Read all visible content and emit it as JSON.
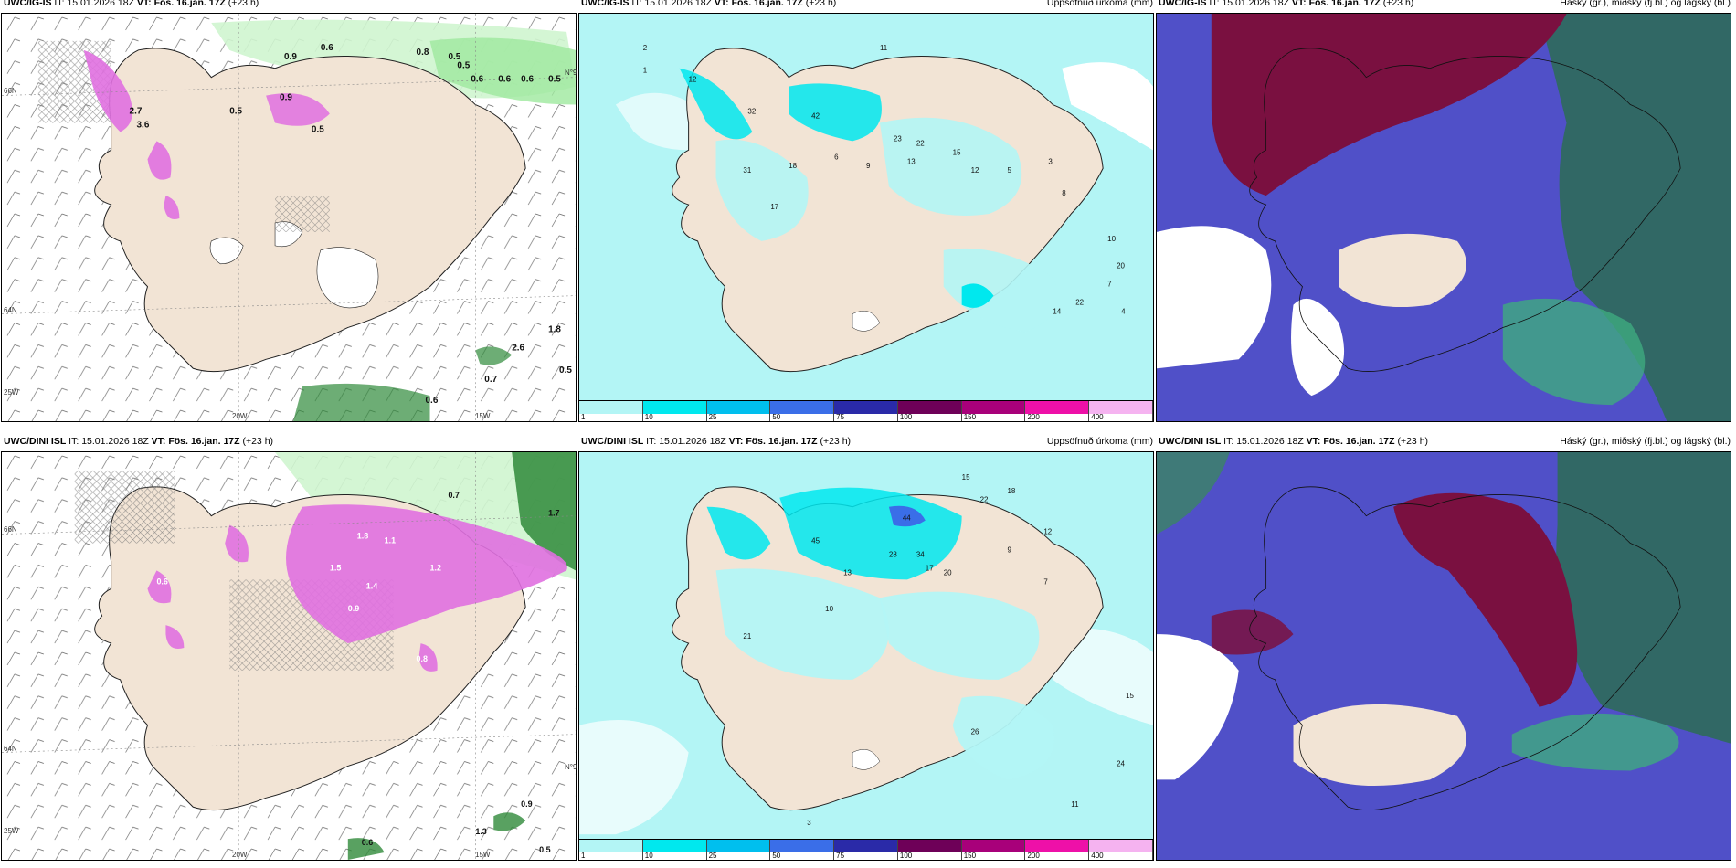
{
  "rows": [
    {
      "model": "UWC/IG-IS",
      "it_label": "IT:",
      "it_value": "15.01.2026 18Z",
      "vt_label": "VT:",
      "vt_value": "Fös. 16.jan. 17Z",
      "lead": "(+23 h)"
    },
    {
      "model": "UWC/DINI ISL",
      "it_label": "IT:",
      "it_value": "15.01.2026 18Z",
      "vt_label": "VT:",
      "vt_value": "Fös. 16.jan. 17Z",
      "lead": "(+23 h)"
    }
  ],
  "panel_titles": {
    "precip": "Uppsöfnuð úrkoma (mm)",
    "clouds": "Háský (gr.), miðský (fj.bl.) og lágský (bl.)"
  },
  "coords": {
    "lat66": "66N",
    "lat64": "64N",
    "lon20": "20W",
    "lon15": "15W",
    "lon25": "25W",
    "lat_right": "N°9"
  },
  "colorbar": {
    "labels": [
      "1",
      "10",
      "25",
      "50",
      "75",
      "100",
      "150",
      "200",
      "400"
    ],
    "colors": [
      "#b3f5f5",
      "#00e8ee",
      "#00bfee",
      "#3a6ee8",
      "#2a2aa8",
      "#6e0058",
      "#a8007a",
      "#ee10a8",
      "#f5b3f0"
    ]
  },
  "snow_labels_top": [
    "0.9",
    "0.6",
    "0.5",
    "0.8",
    "0.5",
    "0.6",
    "0.6",
    "0.6",
    "0.5",
    "2.7",
    "3.6",
    "0.5",
    "0.5",
    "0.9",
    "1.8",
    "2.6",
    "0.5",
    "0.7",
    "0.6"
  ],
  "snow_labels_bottom": [
    "0.7",
    "1.1",
    "1.2",
    "1.8",
    "1.5",
    "1.4",
    "0.9",
    "0.8",
    "1.7",
    "0.6",
    "0.9",
    "1.3",
    "0.6",
    "0.5"
  ],
  "precip_labels_top": [
    "2",
    "1",
    "11",
    "12",
    "32",
    "42",
    "31",
    "18",
    "6",
    "9",
    "23",
    "22",
    "13",
    "15",
    "12",
    "5",
    "3",
    "8",
    "17",
    "22",
    "14",
    "20",
    "10",
    "7",
    "4"
  ],
  "precip_labels_bottom": [
    "15",
    "22",
    "18",
    "12",
    "45",
    "44",
    "34",
    "28",
    "20",
    "17",
    "13",
    "9",
    "10",
    "7",
    "21",
    "26",
    "24",
    "15",
    "11",
    "3"
  ],
  "colors": {
    "land": "#f2e4d5",
    "sea_precip": "#b3f5f5",
    "high_cloud": "#7a1040",
    "mid_cloud": "#5050c8",
    "low_cloud": "#2e8a6a",
    "snow": "#e070e0",
    "rain_green": "#9ee89e"
  }
}
